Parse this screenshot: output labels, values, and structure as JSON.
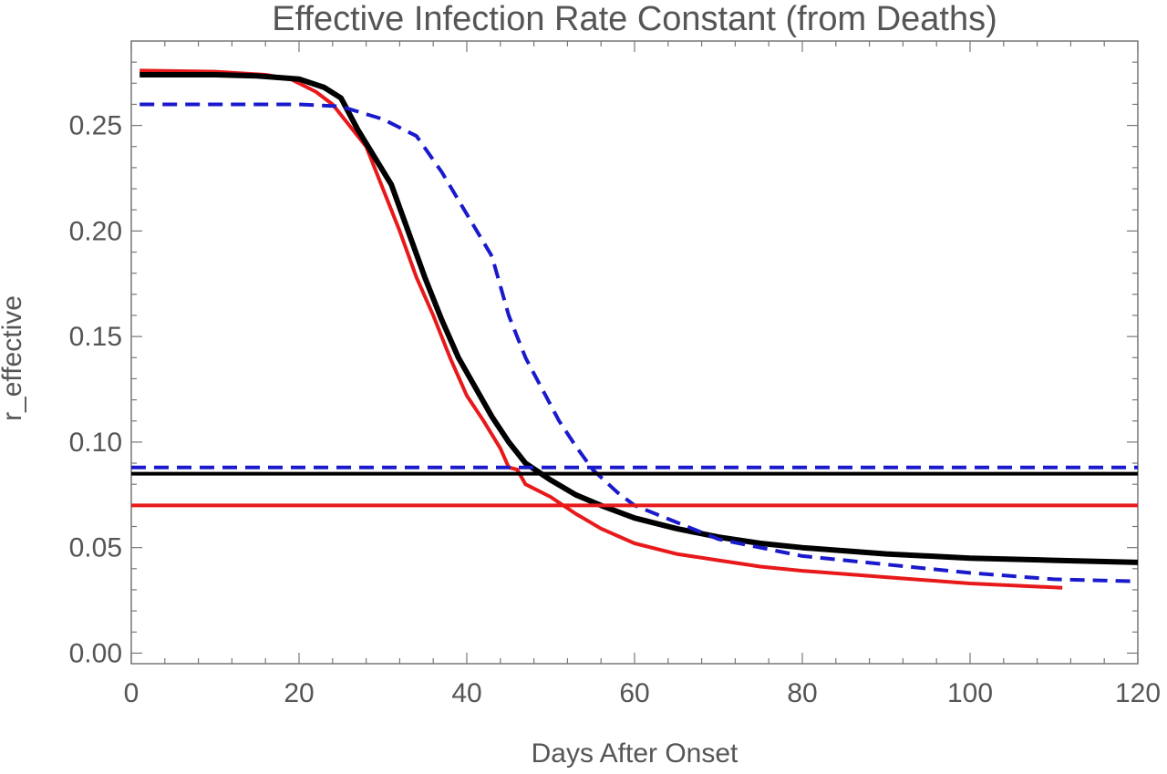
{
  "chart_data": {
    "type": "line",
    "title": "Effective Infection Rate Constant (from Deaths)",
    "xlabel": "Days After Onset",
    "ylabel": "r_effective",
    "xlim": [
      0,
      120
    ],
    "ylim": [
      -0.005,
      0.29
    ],
    "x_ticks": [
      0,
      20,
      40,
      60,
      80,
      100,
      120
    ],
    "y_ticks": [
      0.0,
      0.05,
      0.1,
      0.15,
      0.2,
      0.25
    ],
    "y_tick_labels": [
      "0.00",
      "0.05",
      "0.10",
      "0.15",
      "0.20",
      "0.25"
    ],
    "grid": false,
    "frame": true,
    "series": [
      {
        "color": "#e8191a",
        "dash": false,
        "width": 4,
        "x": [
          1,
          10,
          16,
          19,
          22,
          24,
          26,
          28,
          30,
          32,
          34,
          36,
          38,
          40,
          42,
          44,
          45,
          46,
          47,
          50,
          53,
          56,
          60,
          65,
          70,
          75,
          80,
          90,
          100,
          111
        ],
        "y": [
          0.276,
          0.2755,
          0.274,
          0.272,
          0.266,
          0.26,
          0.25,
          0.24,
          0.22,
          0.2,
          0.178,
          0.16,
          0.14,
          0.122,
          0.11,
          0.097,
          0.088,
          0.087,
          0.08,
          0.074,
          0.066,
          0.059,
          0.052,
          0.047,
          0.044,
          0.041,
          0.039,
          0.036,
          0.033,
          0.031
        ]
      },
      {
        "color": "#000000",
        "dash": false,
        "width": 6,
        "x": [
          1,
          10,
          15,
          20,
          23,
          25,
          27,
          29,
          31,
          33,
          35,
          37,
          39,
          41,
          43,
          45,
          47,
          50,
          53,
          56,
          60,
          65,
          70,
          75,
          80,
          90,
          100,
          110,
          120
        ],
        "y": [
          0.274,
          0.274,
          0.2735,
          0.272,
          0.268,
          0.263,
          0.248,
          0.235,
          0.222,
          0.2,
          0.178,
          0.158,
          0.14,
          0.126,
          0.112,
          0.1,
          0.09,
          0.082,
          0.075,
          0.07,
          0.064,
          0.059,
          0.055,
          0.052,
          0.05,
          0.047,
          0.045,
          0.044,
          0.043
        ]
      },
      {
        "color": "#1a1acc",
        "dash": true,
        "width": 4,
        "x": [
          1,
          10,
          20,
          25,
          30,
          34,
          37,
          40,
          43,
          45,
          47,
          49,
          51,
          53,
          55,
          58,
          60,
          65,
          70,
          75,
          80,
          90,
          100,
          110,
          120
        ],
        "y": [
          0.26,
          0.26,
          0.26,
          0.259,
          0.253,
          0.245,
          0.228,
          0.208,
          0.188,
          0.16,
          0.14,
          0.125,
          0.11,
          0.098,
          0.087,
          0.076,
          0.07,
          0.062,
          0.054,
          0.05,
          0.046,
          0.042,
          0.038,
          0.035,
          0.034
        ]
      },
      {
        "color": "#1a1acc",
        "dash": true,
        "width": 4,
        "x": [
          0,
          120
        ],
        "y": [
          0.088,
          0.088
        ]
      },
      {
        "color": "#000000",
        "dash": false,
        "width": 4,
        "x": [
          0,
          120
        ],
        "y": [
          0.085,
          0.085
        ]
      },
      {
        "color": "#e8191a",
        "dash": false,
        "width": 4,
        "x": [
          0,
          120
        ],
        "y": [
          0.07,
          0.07
        ]
      }
    ]
  }
}
